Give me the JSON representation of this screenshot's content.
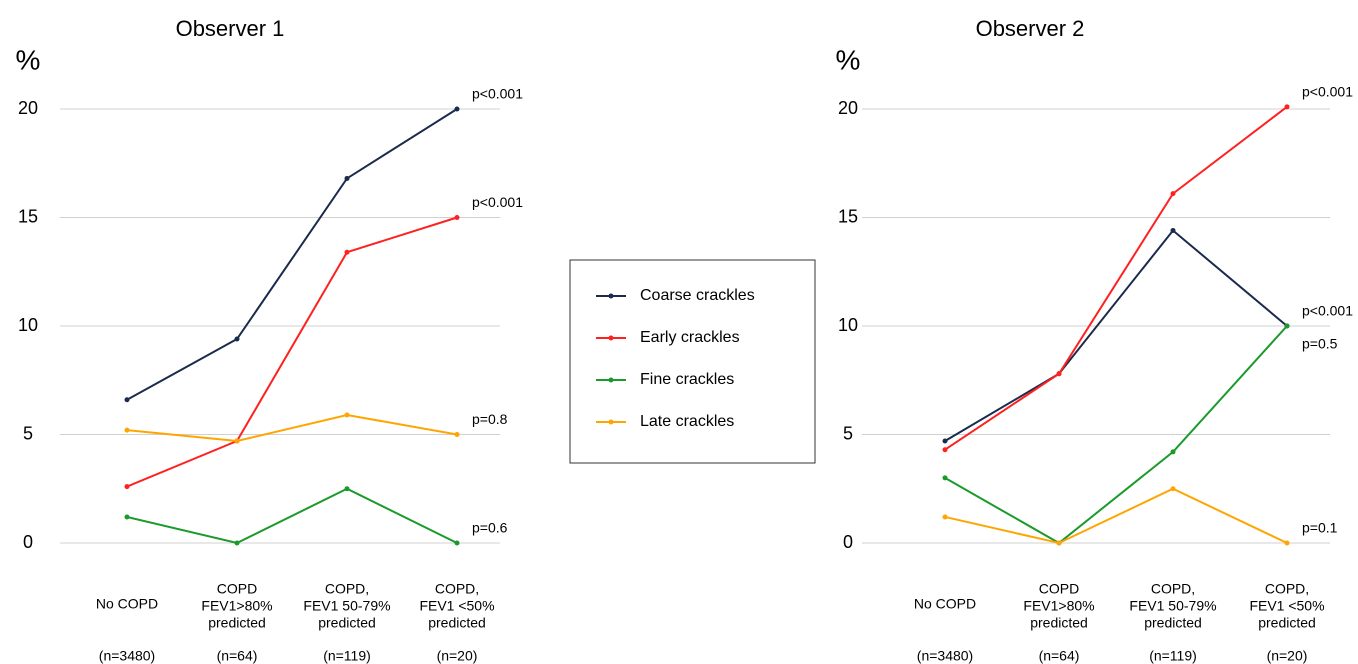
{
  "chart_data": [
    {
      "type": "line",
      "title": "Observer 1",
      "y_label": "%",
      "categories": [
        [
          "No COPD"
        ],
        [
          "COPD",
          "FEV1>80%",
          "predicted"
        ],
        [
          "COPD,",
          "FEV1 50-79%",
          "predicted"
        ],
        [
          "COPD,",
          "FEV1 <50%",
          "predicted"
        ]
      ],
      "category_counts": [
        "(n=3480)",
        "(n=64)",
        "(n=119)",
        "(n=20)"
      ],
      "ylim": [
        0,
        20
      ],
      "yticks": [
        0,
        5,
        10,
        15,
        20
      ],
      "grid": true,
      "series": [
        {
          "name": "Coarse crackles",
          "color": "#1a2b4c",
          "values": [
            6.6,
            9.4,
            16.8,
            20
          ]
        },
        {
          "name": "Early crackles",
          "color": "#ff2020",
          "values": [
            2.6,
            4.7,
            13.4,
            15
          ]
        },
        {
          "name": "Fine crackles",
          "color": "#1a9a2a",
          "values": [
            1.2,
            0,
            2.5,
            0
          ]
        },
        {
          "name": "Late crackles",
          "color": "#ffa500",
          "values": [
            5.2,
            4.7,
            5.9,
            5.0
          ]
        }
      ],
      "annotations": [
        {
          "text": "p<0.001",
          "series": 0
        },
        {
          "text": "p<0.001",
          "series": 1
        },
        {
          "text": "p=0.8",
          "series": 3
        },
        {
          "text": "p=0.6",
          "series": 2
        }
      ]
    },
    {
      "type": "line",
      "title": "Observer 2",
      "y_label": "%",
      "categories": [
        [
          "No COPD"
        ],
        [
          "COPD",
          "FEV1>80%",
          "predicted"
        ],
        [
          "COPD,",
          "FEV1 50-79%",
          "predicted"
        ],
        [
          "COPD,",
          "FEV1 <50%",
          "predicted"
        ]
      ],
      "category_counts": [
        "(n=3480)",
        "(n=64)",
        "(n=119)",
        "(n=20)"
      ],
      "ylim": [
        0,
        20
      ],
      "yticks": [
        0,
        5,
        10,
        15,
        20
      ],
      "grid": true,
      "series": [
        {
          "color": "#1a2b4c",
          "values": [
            4.7,
            7.8,
            14.4,
            10
          ]
        },
        {
          "color": "#ff2020",
          "values": [
            4.3,
            7.8,
            16.1,
            20.1
          ]
        },
        {
          "color": "#1a9a2a",
          "values": [
            3.0,
            0,
            4.2,
            10
          ]
        },
        {
          "color": "#ffa500",
          "values": [
            1.2,
            0,
            2.5,
            0
          ]
        }
      ],
      "annotations": [
        {
          "text": "p<0.001",
          "series": 1
        },
        {
          "text": "p<0.001",
          "series": 0
        },
        {
          "text": "p=0.5",
          "series": 2
        },
        {
          "text": "p=0.1",
          "series": 3
        }
      ]
    }
  ]
}
